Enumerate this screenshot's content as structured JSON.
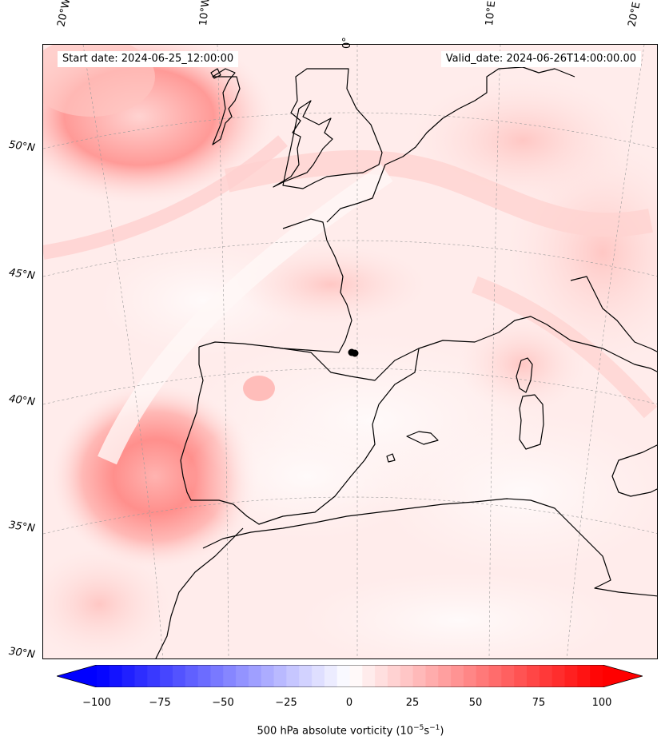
{
  "start_label": "Start date: 2024-06-25_12:00:00",
  "valid_label": "Valid_date: 2024-06-26T14:00:00.00",
  "longitude_labels": [
    "20°W",
    "10°W",
    "0°",
    "10°E",
    "20°E"
  ],
  "latitude_labels": [
    "50°N",
    "45°N",
    "40°N",
    "35°N",
    "30°N"
  ],
  "colorbar": {
    "min": -100,
    "max": 100,
    "step": 5,
    "extend": "both",
    "ticks": [
      "−100",
      "−75",
      "−50",
      "−25",
      "0",
      "25",
      "50",
      "75",
      "100"
    ],
    "label_prefix": "500 hPa absolute vorticity (10",
    "label_exp1": "−5",
    "label_mid": "s",
    "label_exp2": "−1",
    "label_suffix": ")",
    "negative_color": "#0000ff",
    "positive_color": "#ff0000"
  },
  "colors": {
    "coastline": "#000000",
    "background_field": "#fff0ef",
    "gridline": "#9a9a9a"
  }
}
